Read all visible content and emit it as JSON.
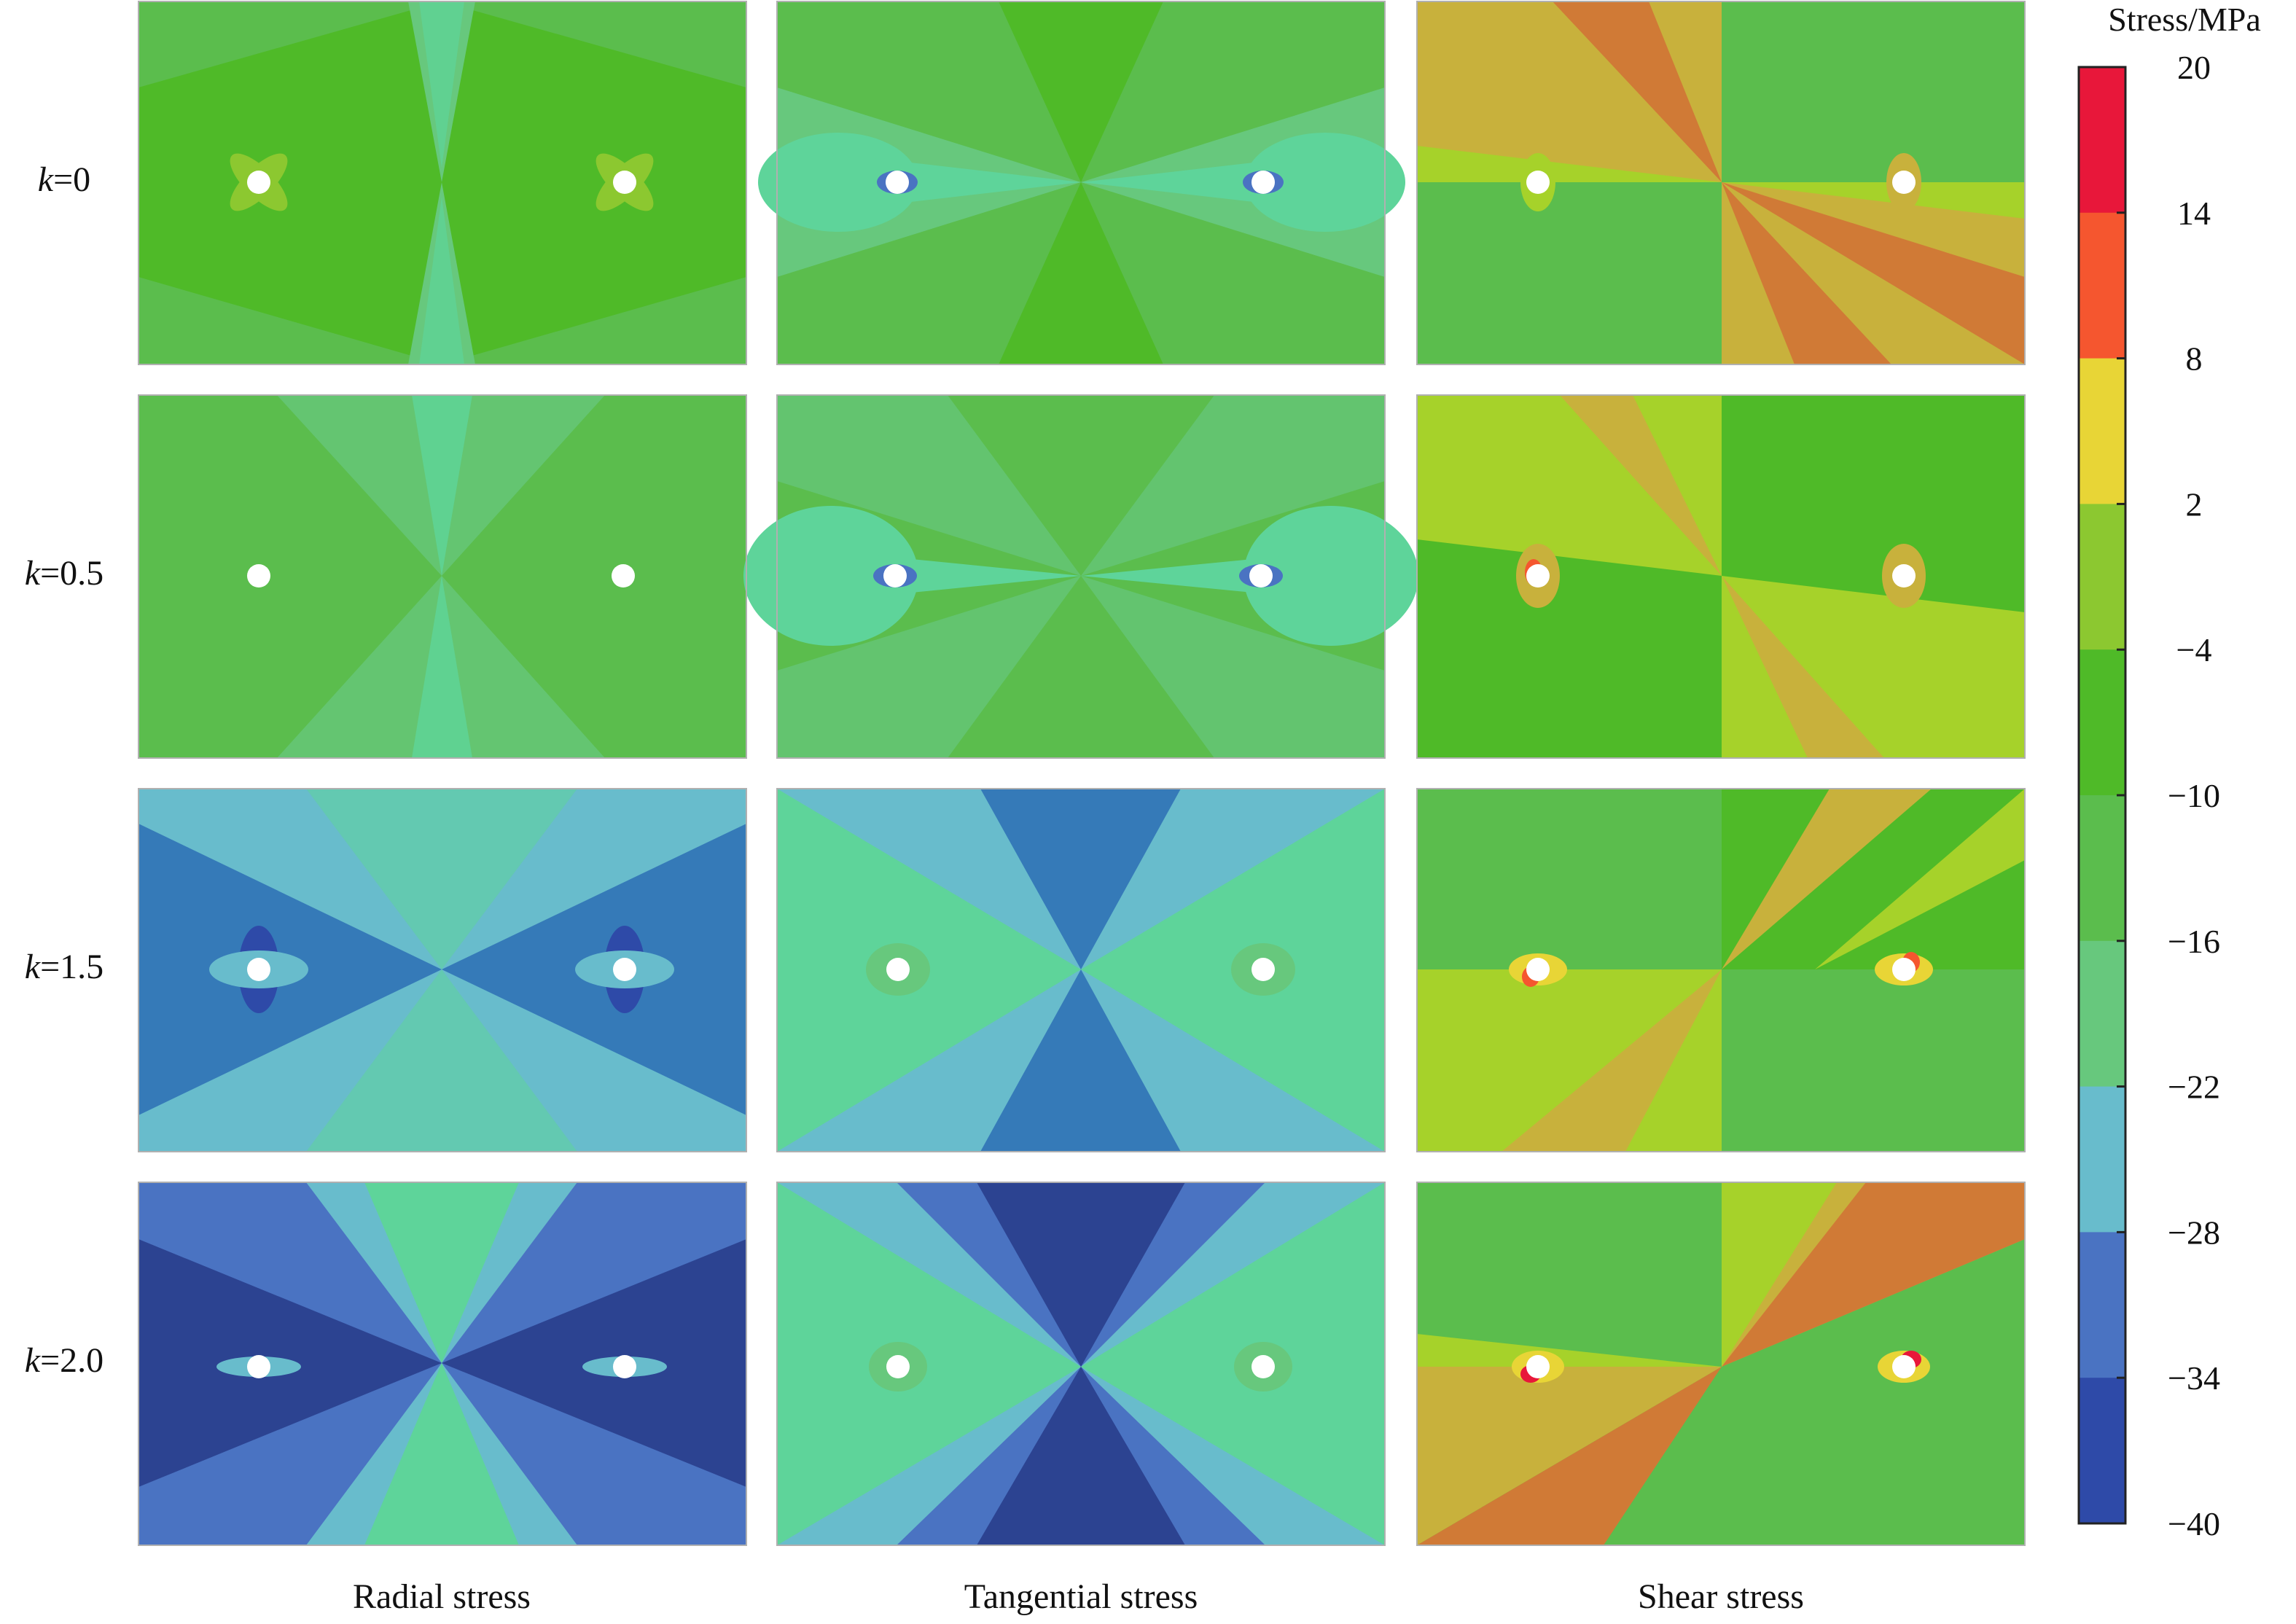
{
  "row_labels": [
    {
      "var": "k",
      "val": "=0"
    },
    {
      "var": "k",
      "val": "=0.5"
    },
    {
      "var": "k",
      "val": "=1.5"
    },
    {
      "var": "k",
      "val": "=2.0"
    }
  ],
  "column_labels": [
    "Radial stress",
    "Tangential stress",
    "Shear stress"
  ],
  "colorbar": {
    "title": "Stress/MPa",
    "ticks": [
      "20",
      "14",
      "8",
      "2",
      "−4",
      "−10",
      "−16",
      "−22",
      "−28",
      "−34",
      "−40"
    ],
    "colors": [
      "#e8173a",
      "#f5562f",
      "#e8d536",
      "#8cc830",
      "#4fba28",
      "#5bbd4d",
      "#67c87d",
      "#68bccc",
      "#4a73c2",
      "#2e4aa8"
    ]
  },
  "palette": {
    "c20_14": "#e8173a",
    "c14_8": "#f5562f",
    "c8_2": "#e8d536",
    "c2_m4": "#8cc830",
    "cm4_m10": "#4fba28",
    "cm10_m16": "#5bbd4d",
    "cm16_m22": "#67c87d",
    "cm22_m28": "#68bccc",
    "cm28_m34": "#4a73c2",
    "cm34_m40": "#2e4aa8",
    "orange": "#d07a36",
    "olive": "#c8b13c",
    "lime": "#a6d22a",
    "mint": "#5ed49a",
    "steel": "#357ab8",
    "navy": "#2c4391"
  }
}
